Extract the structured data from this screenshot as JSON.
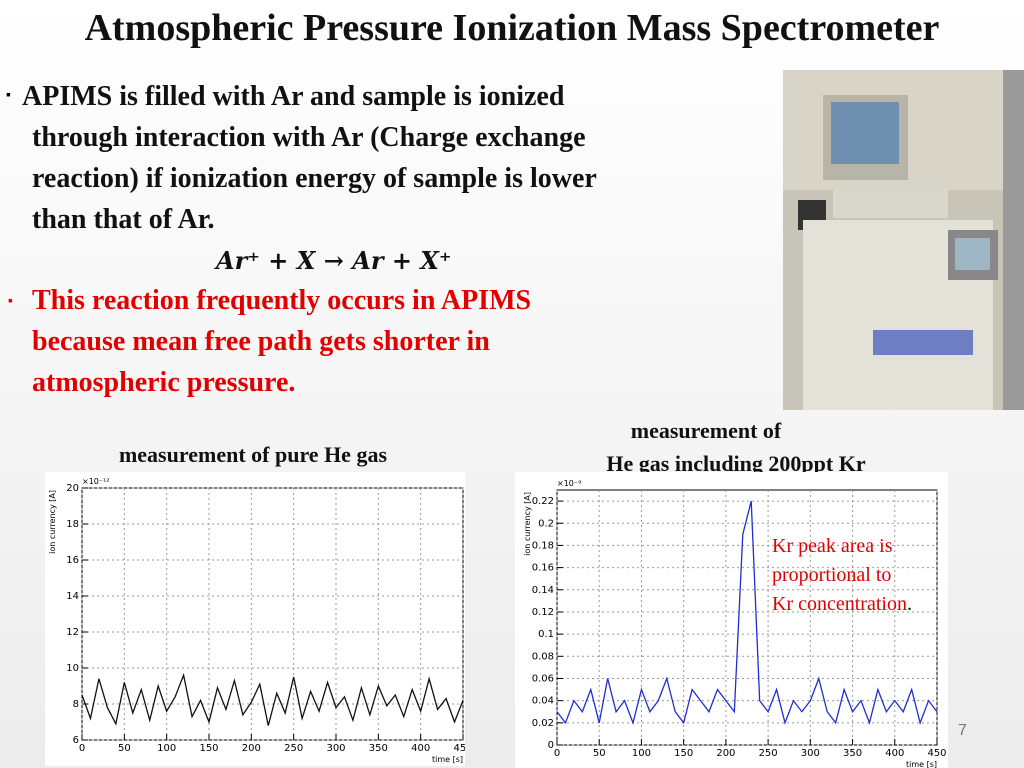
{
  "title": "Atmospheric Pressure Ionization Mass Spectrometer",
  "bullets": [
    {
      "lines": [
        "APIMS is filled with Ar and sample is ionized",
        "through interaction with Ar (Charge exchange",
        "reaction) if ionization energy of sample is lower",
        "than that of Ar."
      ],
      "equation": "Ar⁺ + X  → Ar + X⁺"
    },
    {
      "lines": [
        "This reaction frequently occurs in APIMS",
        "because mean free path gets shorter in",
        "atmospheric pressure."
      ]
    }
  ],
  "captions": {
    "left": "measurement  of pure He gas",
    "right": [
      "measurement  of",
      "He gas including 200ppt  Kr"
    ]
  },
  "annotation": {
    "lines": [
      "Kr peak area is",
      "proportional to",
      "Kr concentration"
    ],
    "end": "."
  },
  "page_number": "7",
  "chart_data": [
    {
      "type": "line",
      "ylabel": "ion currency [A]",
      "xlabel": "time [s]",
      "exponent": "×10⁻¹²",
      "x": [
        0,
        10,
        20,
        30,
        40,
        50,
        60,
        70,
        80,
        90,
        100,
        110,
        120,
        130,
        140,
        150,
        160,
        170,
        180,
        190,
        200,
        210,
        220,
        230,
        240,
        250,
        260,
        270,
        280,
        290,
        300,
        310,
        320,
        330,
        340,
        350,
        360,
        370,
        380,
        390,
        400,
        410,
        420,
        430,
        440,
        450
      ],
      "series": [
        {
          "color": "#111111",
          "values": [
            8.5,
            7.2,
            9.4,
            7.8,
            6.9,
            9.2,
            7.5,
            8.8,
            7.1,
            9.0,
            7.6,
            8.4,
            9.6,
            7.3,
            8.2,
            7.0,
            8.9,
            7.7,
            9.3,
            7.4,
            8.1,
            9.1,
            6.8,
            8.6,
            7.5,
            9.5,
            7.2,
            8.7,
            7.6,
            9.2,
            7.8,
            8.4,
            7.1,
            8.9,
            7.4,
            9.0,
            7.9,
            8.5,
            7.3,
            8.8,
            7.6,
            9.4,
            7.7,
            8.3,
            7.0,
            8.2
          ]
        }
      ],
      "xlim": [
        0,
        450
      ],
      "xticks": [
        0,
        50,
        100,
        150,
        200,
        250,
        300,
        350,
        400,
        450
      ],
      "ylim": [
        6,
        20
      ],
      "yticks": [
        6,
        8,
        10,
        12,
        14,
        16,
        18,
        20
      ],
      "grid": true
    },
    {
      "type": "line",
      "ylabel": "ion currency [A]",
      "xlabel": "time [s]",
      "exponent": "×10⁻⁹",
      "x": [
        0,
        10,
        20,
        30,
        40,
        50,
        60,
        70,
        80,
        90,
        100,
        110,
        120,
        130,
        140,
        150,
        160,
        170,
        180,
        190,
        200,
        210,
        220,
        230,
        240,
        250,
        260,
        270,
        280,
        290,
        300,
        310,
        320,
        330,
        340,
        350,
        360,
        370,
        380,
        390,
        400,
        410,
        420,
        430,
        440,
        450
      ],
      "series": [
        {
          "color": "#1f2fd0",
          "values": [
            0.03,
            0.02,
            0.04,
            0.03,
            0.05,
            0.02,
            0.06,
            0.03,
            0.04,
            0.02,
            0.05,
            0.03,
            0.04,
            0.06,
            0.03,
            0.02,
            0.05,
            0.04,
            0.03,
            0.05,
            0.04,
            0.03,
            0.19,
            0.22,
            0.04,
            0.03,
            0.05,
            0.02,
            0.04,
            0.03,
            0.04,
            0.06,
            0.03,
            0.02,
            0.05,
            0.03,
            0.04,
            0.02,
            0.05,
            0.03,
            0.04,
            0.03,
            0.05,
            0.02,
            0.04,
            0.03
          ]
        }
      ],
      "xlim": [
        0,
        450
      ],
      "xticks": [
        0,
        50,
        100,
        150,
        200,
        250,
        300,
        350,
        400,
        450
      ],
      "ylim": [
        0,
        0.23
      ],
      "yticks": [
        0,
        0.02,
        0.04,
        0.06,
        0.08,
        0.1,
        0.12,
        0.14,
        0.16,
        0.18,
        0.2,
        0.22
      ],
      "grid": true
    }
  ]
}
